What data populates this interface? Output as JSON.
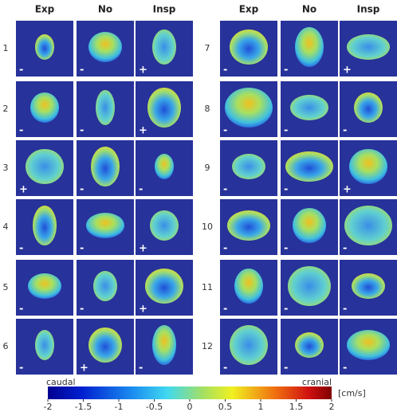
{
  "column_headers": [
    "Exp",
    "No",
    "Insp",
    "Exp",
    "No",
    "Insp"
  ],
  "rows": [
    {
      "label": "1",
      "signs": [
        "-",
        "-",
        "+"
      ]
    },
    {
      "label": "2",
      "signs": [
        "-",
        "-",
        "+"
      ]
    },
    {
      "label": "3",
      "signs": [
        "+",
        "-",
        "-"
      ]
    },
    {
      "label": "4",
      "signs": [
        "-",
        "-",
        "+"
      ]
    },
    {
      "label": "5",
      "signs": [
        "-",
        "-",
        "+"
      ]
    },
    {
      "label": "6",
      "signs": [
        "-",
        "+",
        "-"
      ]
    },
    {
      "label": "7",
      "signs": [
        "-",
        "-",
        "+"
      ]
    },
    {
      "label": "8",
      "signs": [
        "-",
        "-",
        "-"
      ]
    },
    {
      "label": "9",
      "signs": [
        "-",
        "-",
        "+"
      ]
    },
    {
      "label": "10",
      "signs": [
        "-",
        "-",
        "-"
      ]
    },
    {
      "label": "11",
      "signs": [
        "-",
        "-",
        "-"
      ]
    },
    {
      "label": "12",
      "signs": [
        "-",
        "-",
        "-"
      ]
    }
  ],
  "colorbar": {
    "left_label": "caudal",
    "right_label": "cranial",
    "unit": "[cm/s]",
    "range": [
      -2,
      2
    ],
    "ticks": [
      -2,
      -1.5,
      -1,
      -0.5,
      0,
      0.5,
      1,
      1.5,
      2
    ]
  }
}
